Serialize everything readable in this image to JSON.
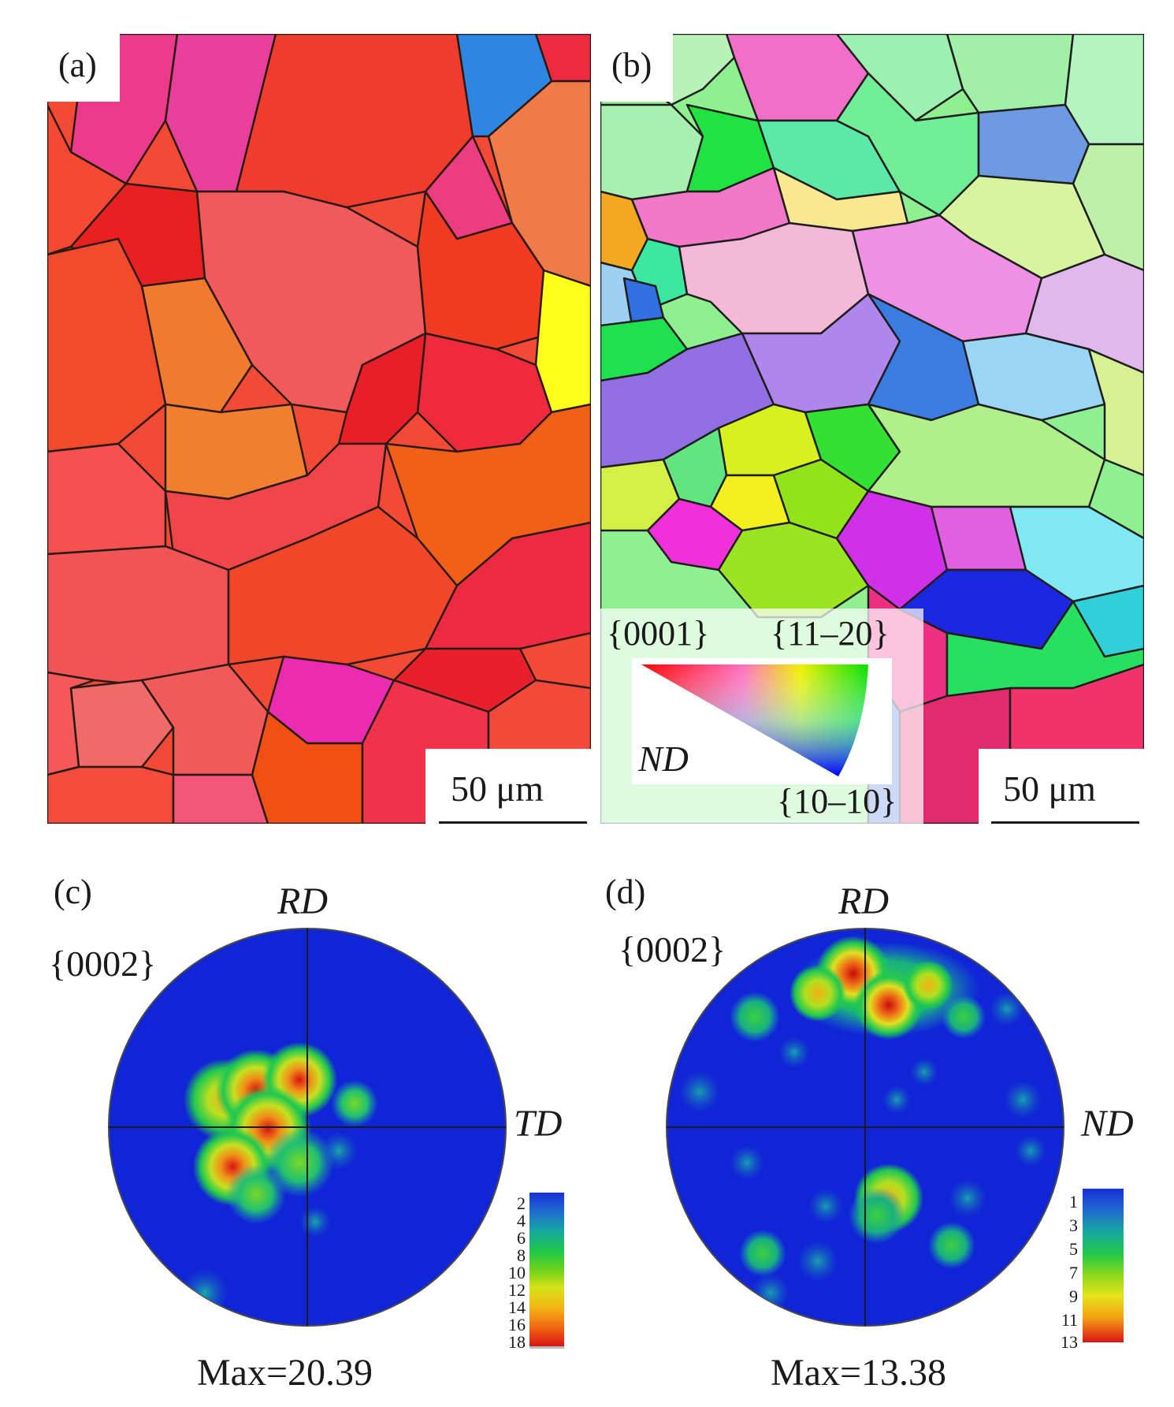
{
  "panels": {
    "a": {
      "label": "(a)",
      "scale_bar": "50 μm"
    },
    "b": {
      "label": "(b)",
      "scale_bar": "50 μm",
      "legend": {
        "corner_top_left": "{0001}",
        "corner_top_right": "{11–20}",
        "corner_bottom": "{10–10}",
        "axis": "ND"
      }
    },
    "c": {
      "label": "(c)",
      "plane": "{0002}",
      "top_axis": "RD",
      "right_axis": "TD",
      "max_label": "Max=20.39",
      "colorbar_ticks": [
        "2",
        "4",
        "6",
        "8",
        "10",
        "12",
        "14",
        "16",
        "18"
      ]
    },
    "d": {
      "label": "(d)",
      "plane": "{0002}",
      "top_axis": "RD",
      "right_axis": "ND",
      "max_label": "Max=13.38",
      "colorbar_ticks": [
        "1",
        "3",
        "5",
        "7",
        "9",
        "11",
        "13"
      ]
    }
  },
  "colors": {
    "pf_background": "#1026d6",
    "colorbar_stops": [
      "#1a2fd8",
      "#1e6ad0",
      "#16a8a0",
      "#1ec84a",
      "#6ad21c",
      "#d8e21a",
      "#f4b414",
      "#f06414",
      "#d81414"
    ]
  }
}
